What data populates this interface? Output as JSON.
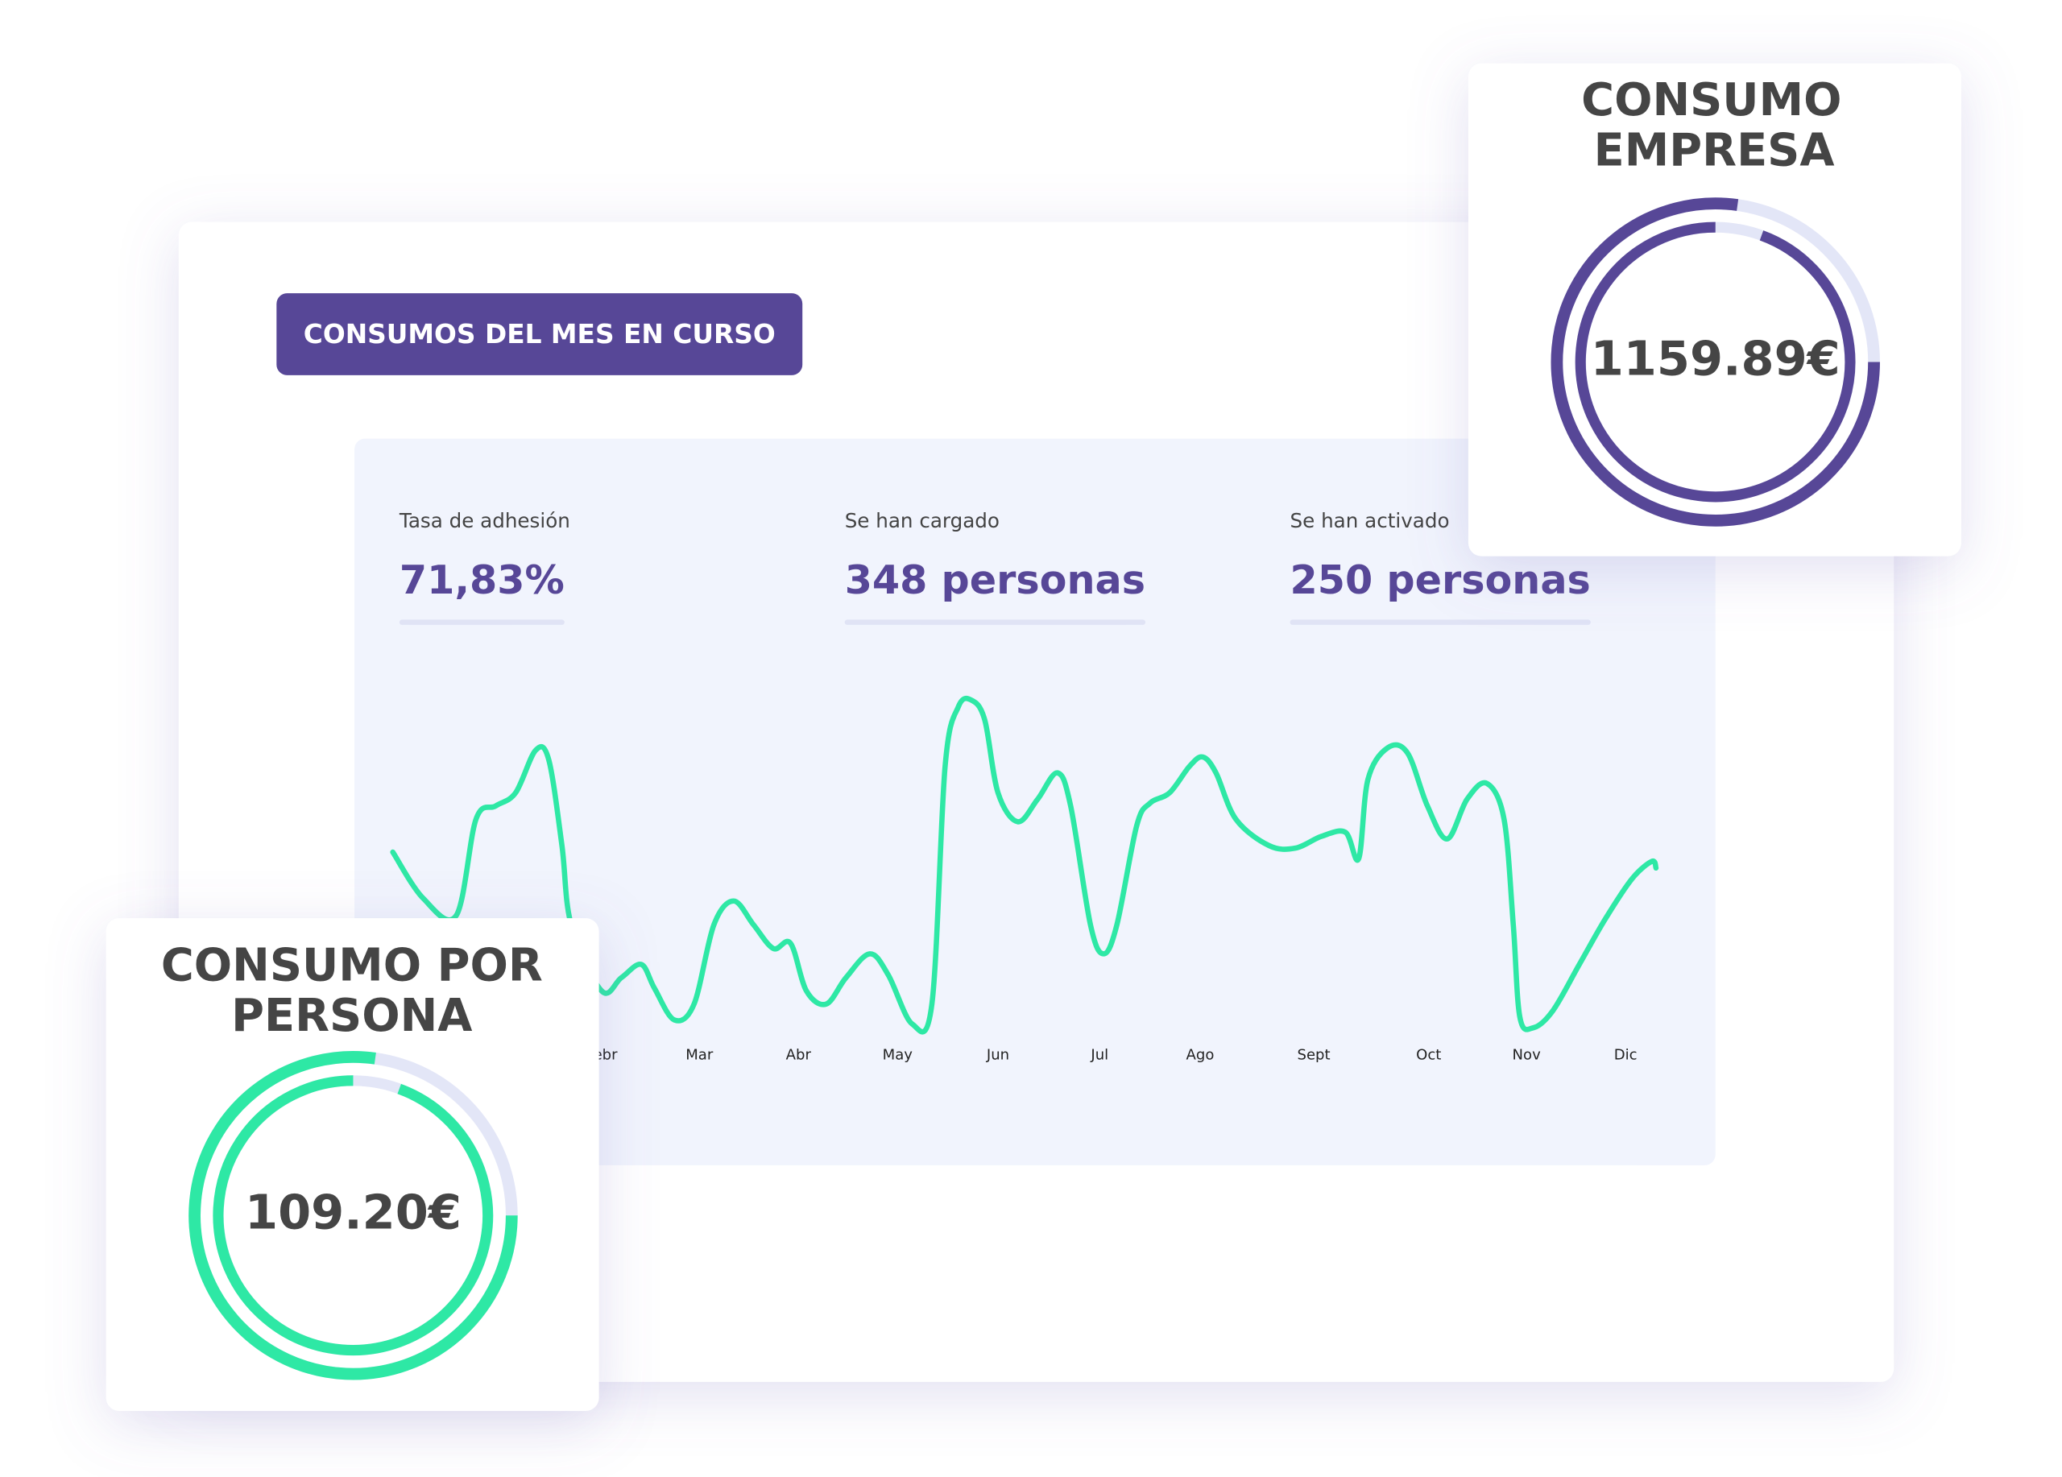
{
  "header": {
    "button": "CONSUMOS DEL MES EN CURSO"
  },
  "stats": [
    {
      "label": "Tasa de adhesión",
      "value": "71,83%"
    },
    {
      "label": "Se han cargado",
      "value": "348 personas"
    },
    {
      "label": "Se han activado",
      "value": "250 personas"
    }
  ],
  "cards": {
    "empresa": {
      "title": [
        "CONSUMO",
        "EMPRESA"
      ],
      "amount": "1159.89€"
    },
    "persona": {
      "title": [
        "CONSUMO POR",
        "PERSONA"
      ],
      "amount": "109.20€"
    }
  },
  "chart_data": {
    "type": "line",
    "color": "#2ee8a5",
    "x": [
      297,
      320,
      345,
      360,
      375,
      390,
      405,
      415,
      425,
      432,
      455,
      470,
      485,
      495,
      510,
      525,
      540,
      555,
      570,
      585,
      598,
      610,
      625,
      640,
      658,
      672,
      690,
      705,
      715,
      725,
      735,
      745,
      755,
      770,
      785,
      800,
      810,
      825,
      835,
      845,
      860,
      870,
      885,
      900,
      910,
      920,
      935,
      960,
      980,
      1000,
      1018,
      1028,
      1035,
      1050,
      1065,
      1080,
      1095,
      1110,
      1125,
      1138,
      1145,
      1150,
      1160,
      1175,
      1195,
      1215,
      1235,
      1250,
      1253
    ],
    "values": [
      155,
      120,
      107,
      180,
      190,
      200,
      232,
      225,
      160,
      100,
      50,
      60,
      70,
      52,
      28,
      40,
      100,
      118,
      100,
      82,
      86,
      50,
      40,
      60,
      78,
      62,
      25,
      40,
      220,
      265,
      270,
      255,
      200,
      178,
      195,
      215,
      190,
      100,
      78,
      100,
      175,
      192,
      200,
      220,
      227,
      215,
      180,
      160,
      158,
      167,
      170,
      150,
      210,
      234,
      230,
      190,
      165,
      195,
      207,
      180,
      100,
      30,
      22,
      35,
      70,
      105,
      135,
      148,
      143
    ],
    "xlim": [
      289,
      1261
    ],
    "ylim": [
      0,
      300
    ],
    "xticks": [
      {
        "value": 455,
        "label": "Febr"
      },
      {
        "value": 529,
        "label": "Mar"
      },
      {
        "value": 604,
        "label": "Abr"
      },
      {
        "value": 679,
        "label": "May"
      },
      {
        "value": 755,
        "label": "Jun"
      },
      {
        "value": 832,
        "label": "Jul"
      },
      {
        "value": 908,
        "label": "Ago"
      },
      {
        "value": 994,
        "label": "Sept"
      },
      {
        "value": 1081,
        "label": "Oct"
      },
      {
        "value": 1155,
        "label": "Nov"
      },
      {
        "value": 1230,
        "label": "Dic"
      }
    ]
  }
}
